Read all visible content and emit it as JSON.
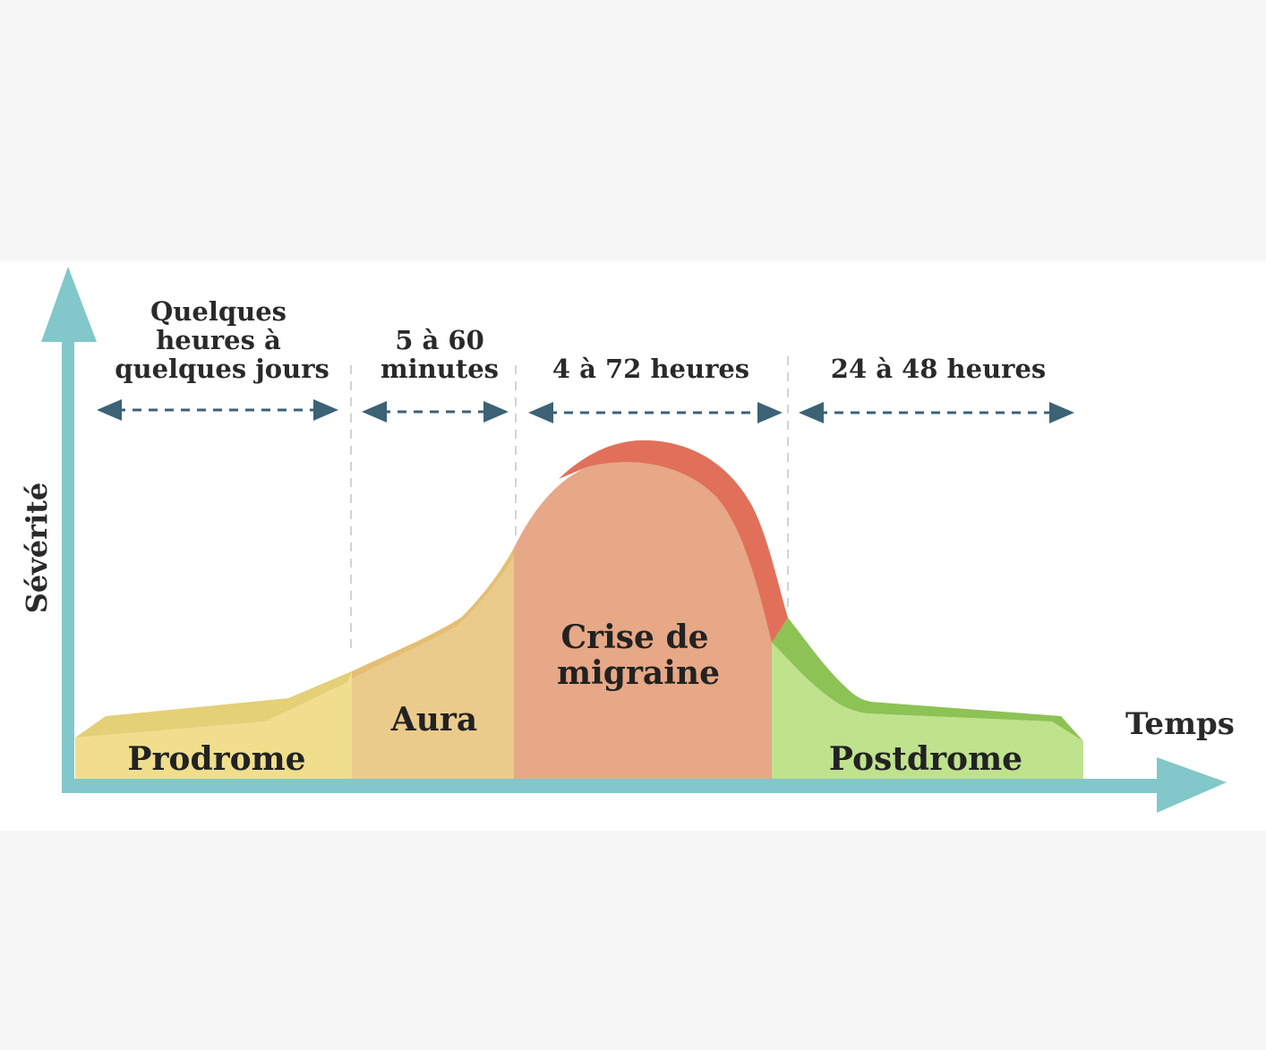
{
  "axes": {
    "y_label": "Sévérité",
    "x_label": "Temps"
  },
  "durations": [
    {
      "lines": [
        "Quelques",
        "heures à",
        "quelques jours"
      ]
    },
    {
      "lines": [
        "5 à 60",
        "minutes"
      ]
    },
    {
      "lines": [
        "4 à 72 heures"
      ]
    },
    {
      "lines": [
        "24 à 48 heures"
      ]
    }
  ],
  "phases": {
    "prodrome": {
      "label": "Prodrome",
      "color": "#f0de8c"
    },
    "aura": {
      "label": "Aura",
      "color": "#ebcb8c"
    },
    "crise": {
      "label_line1": "Crise de",
      "label_line2": "migraine",
      "color": "#e6a886",
      "accent": "#e1705a"
    },
    "postdrome": {
      "label": "Postdrome",
      "color": "#bfe28d",
      "accent": "#8dc255"
    }
  },
  "colors": {
    "axis": "#82c7c9",
    "arrow": "#3c6276",
    "divider": "#c8c8c8"
  }
}
